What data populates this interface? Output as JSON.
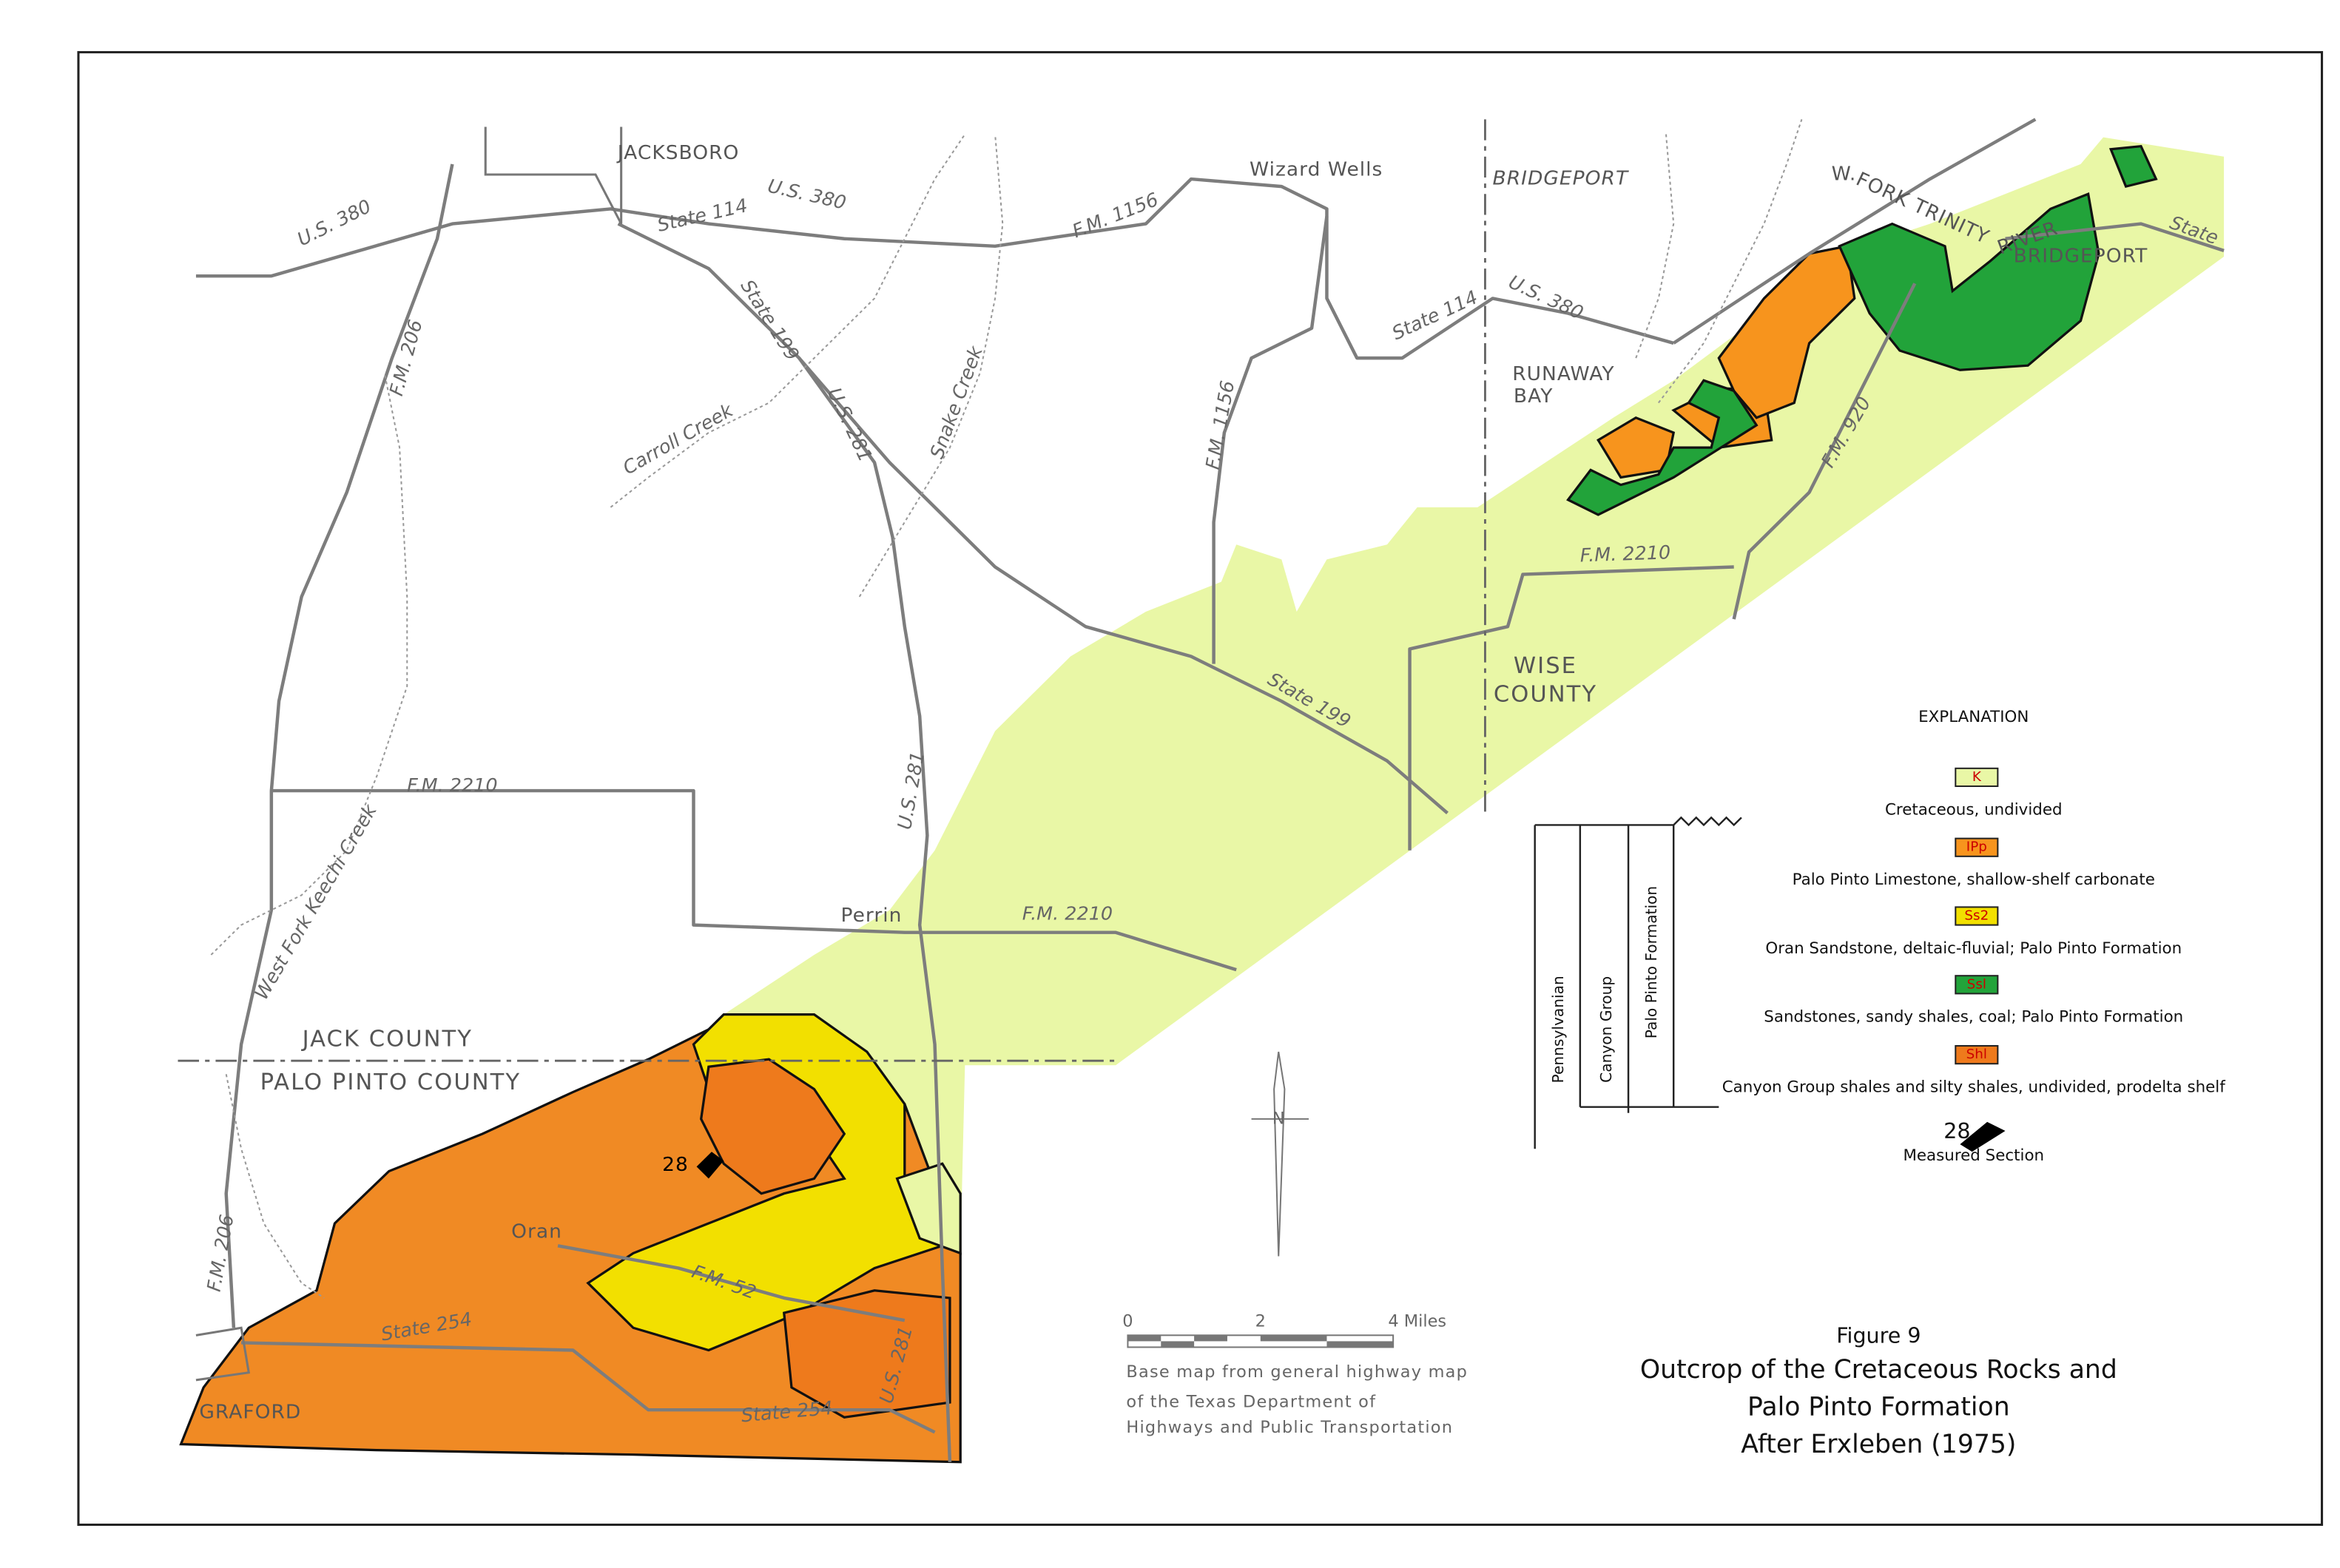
{
  "places": [
    "JACKSBORO",
    "Wizard Wells",
    "BRIDGEPORT",
    "RUNAWAY",
    "BAY",
    "Perrin",
    "Oran",
    "GRAFORD",
    "BRIDGEPORT"
  ],
  "county_labels": [
    "WISE",
    "COUNTY",
    "JACK COUNTY",
    "PALO PINTO COUNTY"
  ],
  "road_labels": [
    "U.S. 380",
    "State 114",
    "U.S. 380",
    "F.M. 1156",
    "State 199",
    "U.S. 281",
    "F.M. 1156",
    "F.M. 206",
    "State 114",
    "U.S. 380",
    "F.M. 920",
    "F.M. 2210",
    "State 199",
    "U.S. 281",
    "F.M. 2210",
    "F.M. 2210",
    "F.M. 206",
    "F.M. 52",
    "State 254",
    "State 254",
    "U.S. 281",
    "State"
  ],
  "stream_labels": [
    "Carroll Creek",
    "Snake Creek",
    "West Fork Keechi Creek"
  ],
  "river_labels": [
    "W.",
    "FORK TRINITY",
    "RIVER"
  ],
  "measured_section_map": "28",
  "north": "N",
  "explanation": {
    "heading": "EXPLANATION",
    "units": [
      {
        "symbol": "K",
        "description": "Cretaceous, undivided"
      },
      {
        "symbol": "IPp",
        "description": "Palo Pinto Limestone, shallow-shelf carbonate"
      },
      {
        "symbol": "Ss2",
        "description": "Oran Sandstone, deltaic-fluvial; Palo Pinto Formation"
      },
      {
        "symbol": "Ssl",
        "description": "Sandstones, sandy shales, coal; Palo Pinto Formation"
      },
      {
        "symbol": "Shl",
        "description": "Canyon Group shales and silty shales, undivided, prodelta shelf"
      }
    ],
    "measured_section": {
      "number": "28",
      "label": "Measured Section"
    }
  },
  "column": [
    "Pennsylvanian",
    "Canyon Group",
    "Palo Pinto Formation"
  ],
  "scale": {
    "labels": [
      "0",
      "2",
      "4 Miles"
    ],
    "note": [
      "Base map from general highway map",
      "of the Texas Department of",
      "Highways and Public Transportation"
    ]
  },
  "figure": {
    "number": "Figure 9",
    "title": [
      "Outcrop of the Cretaceous Rocks and",
      "Palo Pinto Formation",
      "After Erxleben (1975)"
    ]
  }
}
